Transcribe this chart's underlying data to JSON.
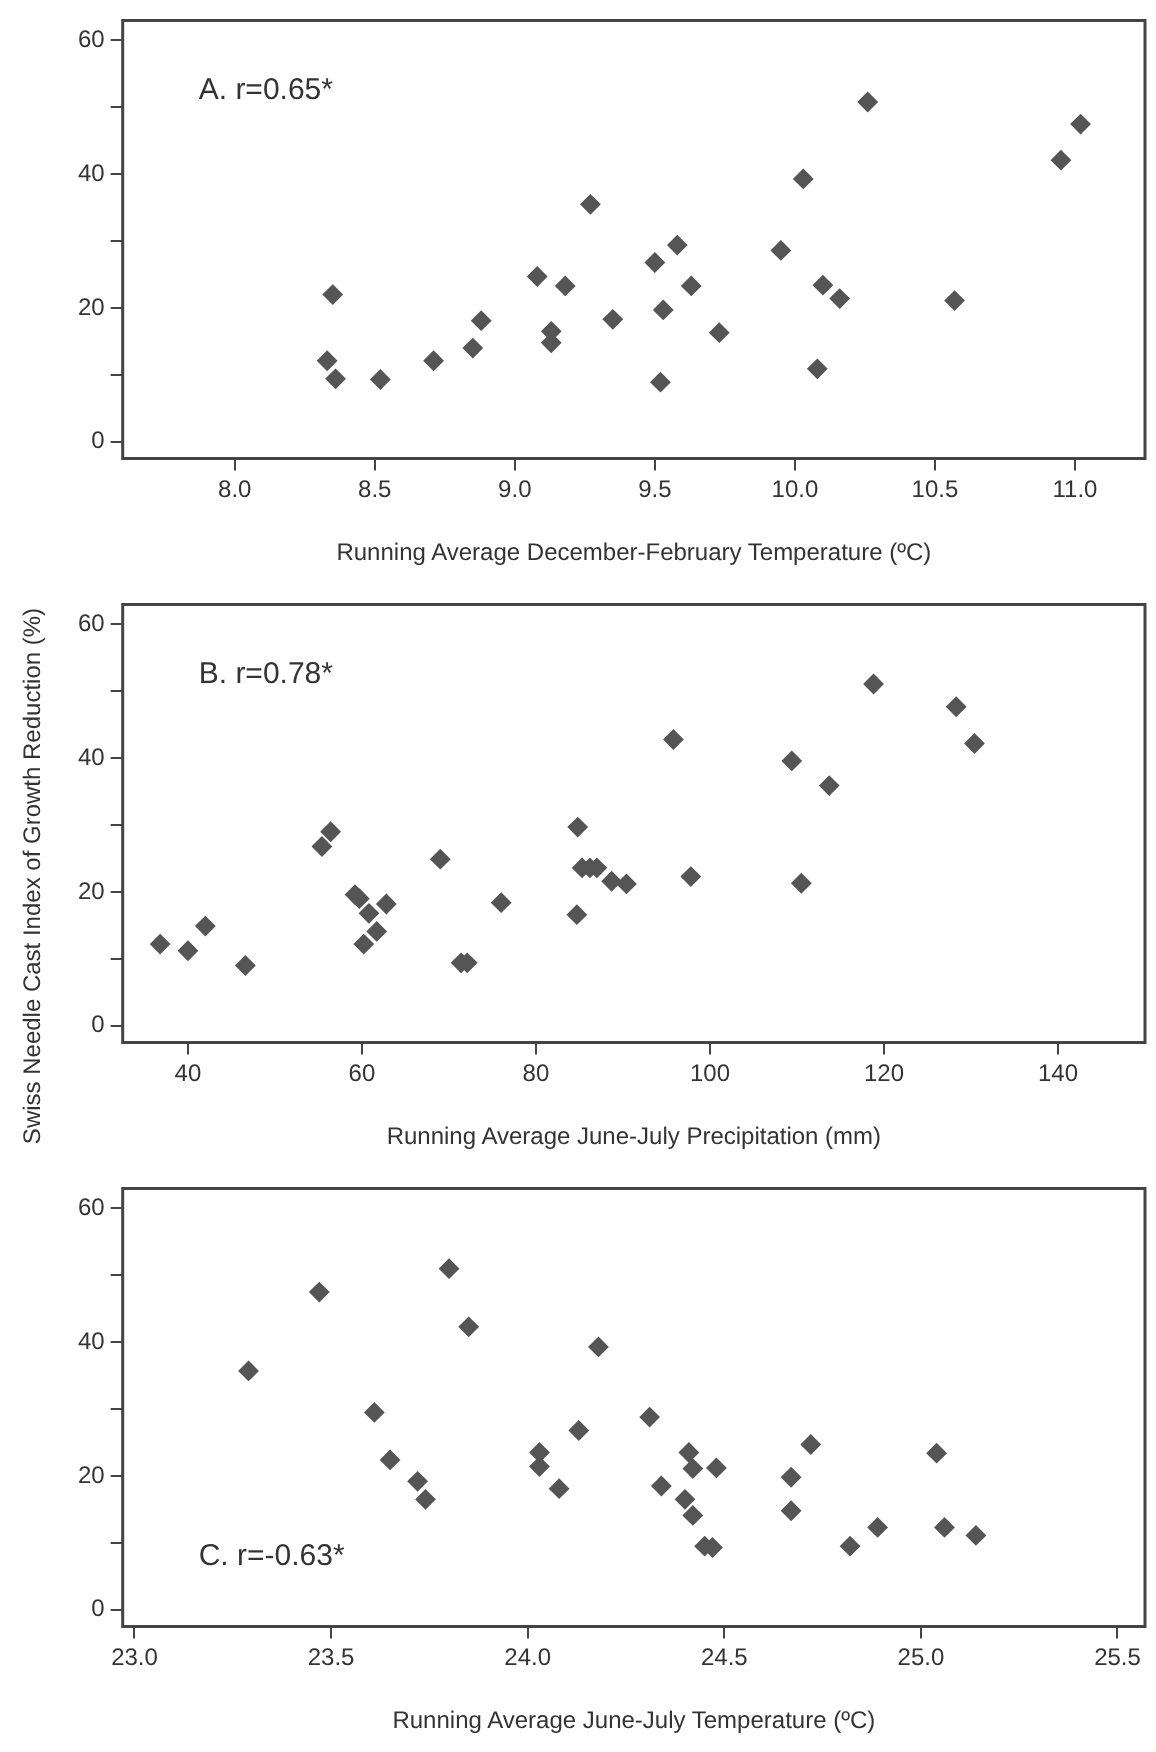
{
  "chart_data": [
    {
      "type": "scatter",
      "xlabel": "Running Average December-February Temperature (ºC)",
      "annotations": [
        "A. r=0.65*"
      ],
      "marker": "diamond",
      "grid": false,
      "xlim": [
        7.6,
        11.25
      ],
      "xticks": [
        {
          "value": 8,
          "label": "8.0"
        },
        {
          "value": 8.5,
          "label": "8.5"
        },
        {
          "value": 9,
          "label": "9.0"
        },
        {
          "value": 9.5,
          "label": "9.5"
        },
        {
          "value": 10,
          "label": "10.0"
        },
        {
          "value": 10.5,
          "label": "10.5"
        },
        {
          "value": 11,
          "label": "11.0"
        }
      ],
      "ylim": [
        -2.5,
        63
      ],
      "yticks": [
        0,
        {
          "value": 10,
          "label": null
        },
        20,
        {
          "value": 30,
          "label": null
        },
        40,
        {
          "value": 50,
          "label": null
        },
        60
      ],
      "series": [
        {
          "color": "#555555",
          "x": [
            8.35,
            8.33,
            8.36,
            8.52,
            8.71,
            8.85,
            8.88,
            9.08,
            9.13,
            9.13,
            9.18,
            9.27,
            9.35,
            9.5,
            9.53,
            9.52,
            9.58,
            9.63,
            9.73,
            9.95,
            10.03,
            10.08,
            10.1,
            10.16,
            10.26,
            10.57,
            10.95,
            11.02
          ],
          "values": [
            22.0,
            12.1,
            9.4,
            9.3,
            12.1,
            14.0,
            18.1,
            24.7,
            16.5,
            14.8,
            23.3,
            35.5,
            18.3,
            26.8,
            19.7,
            8.9,
            29.4,
            23.3,
            16.3,
            28.6,
            39.3,
            10.9,
            23.4,
            21.4,
            50.8,
            21.1,
            42.1,
            47.5
          ]
        }
      ]
    },
    {
      "type": "scatter",
      "xlabel": "Running Average June-July Precipitation (mm)",
      "ylabel": "Swiss Needle Cast Index of Growth Reduction (%)",
      "annotations": [
        "B. r=0.78*"
      ],
      "marker": "diamond",
      "grid": false,
      "xlim": [
        32.5,
        150
      ],
      "xticks": [
        40,
        60,
        80,
        100,
        120,
        140
      ],
      "ylim": [
        -2.5,
        63
      ],
      "yticks": [
        0,
        {
          "value": 10,
          "label": null
        },
        20,
        {
          "value": 30,
          "label": null
        },
        40,
        {
          "value": 50,
          "label": null
        },
        60
      ],
      "series": [
        {
          "color": "#555555",
          "x": [
            36.8,
            40,
            42.0,
            46.6,
            55.4,
            56.4,
            59.2,
            59.7,
            60.2,
            60.8,
            61.7,
            62.8,
            69.0,
            71.4,
            72.1,
            76.0,
            84.7,
            84.8,
            85.3,
            86.2,
            87.0,
            88.7,
            90.4,
            95.8,
            97.8,
            109.4,
            110.5,
            113.7,
            118.8,
            128.3,
            130.4
          ],
          "values": [
            12.2,
            11.2,
            14.9,
            9.0,
            26.8,
            29.0,
            19.6,
            19.0,
            12.2,
            16.8,
            14.1,
            18.2,
            24.9,
            9.4,
            9.4,
            18.4,
            16.6,
            29.7,
            23.6,
            23.6,
            23.6,
            21.6,
            21.2,
            42.8,
            22.3,
            39.6,
            21.3,
            35.9,
            51.1,
            47.7,
            42.2
          ]
        }
      ]
    },
    {
      "type": "scatter",
      "xlabel": "Running Average June-July Temperature (ºC)",
      "annotations": [
        "C. r=-0.63*"
      ],
      "marker": "diamond",
      "grid": false,
      "xlim": [
        22.97,
        25.57
      ],
      "xticks": [
        {
          "value": 23,
          "label": "23.0"
        },
        {
          "value": 23.5,
          "label": "23.5"
        },
        {
          "value": 24,
          "label": "24.0"
        },
        {
          "value": 24.5,
          "label": "24.5"
        },
        {
          "value": 25,
          "label": "25.0"
        },
        {
          "value": 25.5,
          "label": "25.5"
        }
      ],
      "ylim": [
        -2.5,
        63
      ],
      "yticks": [
        0,
        {
          "value": 10,
          "label": null
        },
        20,
        {
          "value": 30,
          "label": null
        },
        40,
        {
          "value": 50,
          "label": null
        },
        60
      ],
      "series": [
        {
          "color": "#555555",
          "x": [
            23.29,
            23.47,
            23.61,
            23.65,
            23.72,
            23.74,
            23.8,
            23.85,
            24.03,
            24.03,
            24.08,
            24.13,
            24.18,
            24.31,
            24.34,
            24.41,
            24.42,
            24.4,
            24.42,
            24.45,
            24.47,
            24.48,
            24.67,
            24.67,
            24.72,
            24.82,
            24.89,
            25.04,
            25.06,
            25.14
          ],
          "values": [
            35.7,
            47.5,
            29.5,
            22.4,
            19.2,
            16.5,
            51.0,
            42.3,
            23.5,
            21.4,
            18.1,
            26.8,
            39.3,
            28.8,
            18.5,
            23.5,
            21.1,
            16.5,
            14.1,
            9.5,
            9.3,
            21.2,
            19.8,
            14.8,
            24.7,
            9.5,
            12.3,
            23.4,
            12.3,
            11.1
          ]
        }
      ]
    }
  ]
}
